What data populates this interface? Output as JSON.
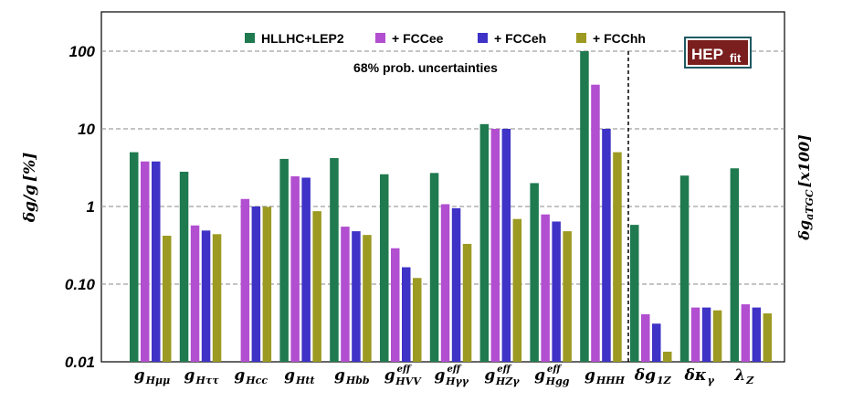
{
  "chart_data": {
    "type": "bar",
    "yscale": "log",
    "ylim": [
      0.01,
      200
    ],
    "yticks": [
      {
        "value": 0.01,
        "label": "0.01"
      },
      {
        "value": 0.1,
        "label": "0.10"
      },
      {
        "value": 1,
        "label": "1"
      },
      {
        "value": 10,
        "label": "10"
      },
      {
        "value": 100,
        "label": "100"
      }
    ],
    "grid": "horizontal dashed",
    "legend_position": "top-center",
    "annotation": "68% prob. uncertainties",
    "ylabel": {
      "main": "δg/g",
      "unit": "[%]"
    },
    "ylabel_right": {
      "main": "δg",
      "sub": "aTGC",
      "unit": "[x100]"
    },
    "logo": {
      "main": "HEP",
      "sub": "fit"
    },
    "categories": [
      {
        "base": "g",
        "sub": "Hμμ"
      },
      {
        "base": "g",
        "sub": "Hττ"
      },
      {
        "base": "g",
        "sub": "Hcc"
      },
      {
        "base": "g",
        "sub": "Htt"
      },
      {
        "base": "g",
        "sub": "Hbb"
      },
      {
        "base": "g",
        "sup": "eff",
        "sub": "HVV"
      },
      {
        "base": "g",
        "sup": "eff",
        "sub": "Hγγ"
      },
      {
        "base": "g",
        "sup": "eff",
        "sub": "HZγ"
      },
      {
        "base": "g",
        "sup": "eff",
        "sub": "Hgg"
      },
      {
        "base": "g",
        "sub": "HHH"
      },
      {
        "base": "δg",
        "sub": "1Z"
      },
      {
        "base": "δκ",
        "sub": "γ"
      },
      {
        "base": "λ",
        "sub": "Z"
      }
    ],
    "series": [
      {
        "name": "HLLHC+LEP2",
        "color": "#1f7a4f",
        "values": [
          5.0,
          2.8,
          null,
          4.1,
          4.2,
          2.6,
          2.7,
          11.5,
          2.0,
          100,
          0.58,
          2.5,
          3.1
        ]
      },
      {
        "name": "+ FCCee",
        "color": "#b14fd0",
        "values": [
          3.8,
          0.57,
          1.25,
          2.45,
          0.55,
          0.29,
          1.07,
          10.0,
          0.79,
          37,
          0.041,
          0.05,
          0.055
        ]
      },
      {
        "name": "+ FCCeh",
        "color": "#3e32c7",
        "values": [
          3.8,
          0.49,
          1.0,
          2.35,
          0.48,
          0.165,
          0.95,
          10.0,
          0.64,
          10.0,
          0.031,
          0.05,
          0.05
        ]
      },
      {
        "name": "+ FCChh",
        "color": "#9c9a22",
        "values": [
          0.42,
          0.44,
          0.99,
          0.87,
          0.43,
          0.12,
          0.33,
          0.69,
          0.48,
          5.0,
          0.0135,
          0.046,
          0.042
        ]
      }
    ]
  }
}
